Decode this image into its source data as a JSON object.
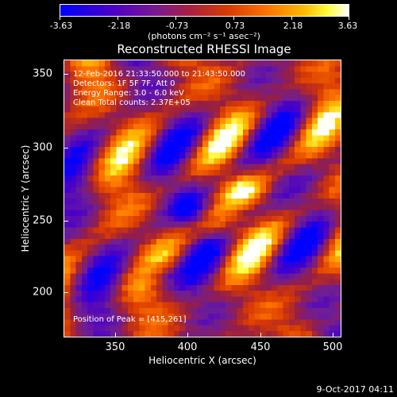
{
  "colorbar": {
    "ticks": [
      "-3.63",
      "-2.18",
      "-0.73",
      "0.73",
      "2.18",
      "3.63"
    ],
    "unit": "(photons cm⁻² s⁻¹ asec⁻²)"
  },
  "title": "Reconstructed RHESSI Image",
  "annotations": {
    "time": "12-Feb-2016 21:33:50.000 to 21:43:50.000",
    "detectors": "Detectors: 1F 5F 7F, Att 0",
    "energy": "Energy Range: 3.0 - 6.0 keV",
    "clean": "Clean     Total counts: 2.37E+05",
    "peak": "Position of Peak = [415,261]"
  },
  "axes": {
    "xlabel": "Heliocentric X (arcsec)",
    "ylabel": "Heliocentric Y (arcsec)",
    "xticks": [
      "350",
      "400",
      "450",
      "500"
    ],
    "yticks": [
      "350",
      "300",
      "250",
      "200"
    ],
    "xrange": [
      312,
      502
    ],
    "yrange": [
      168,
      364
    ]
  },
  "stamp": "9-Oct-2017 04:11",
  "chart_data": {
    "type": "heatmap",
    "title": "Reconstructed RHESSI Image",
    "xlabel": "Heliocentric X (arcsec)",
    "ylabel": "Heliocentric Y (arcsec)",
    "xlim": [
      312,
      502
    ],
    "ylim": [
      168,
      364
    ],
    "colorbar_range": [
      -3.63,
      3.63
    ],
    "peak_position": [
      415,
      261
    ]
  }
}
